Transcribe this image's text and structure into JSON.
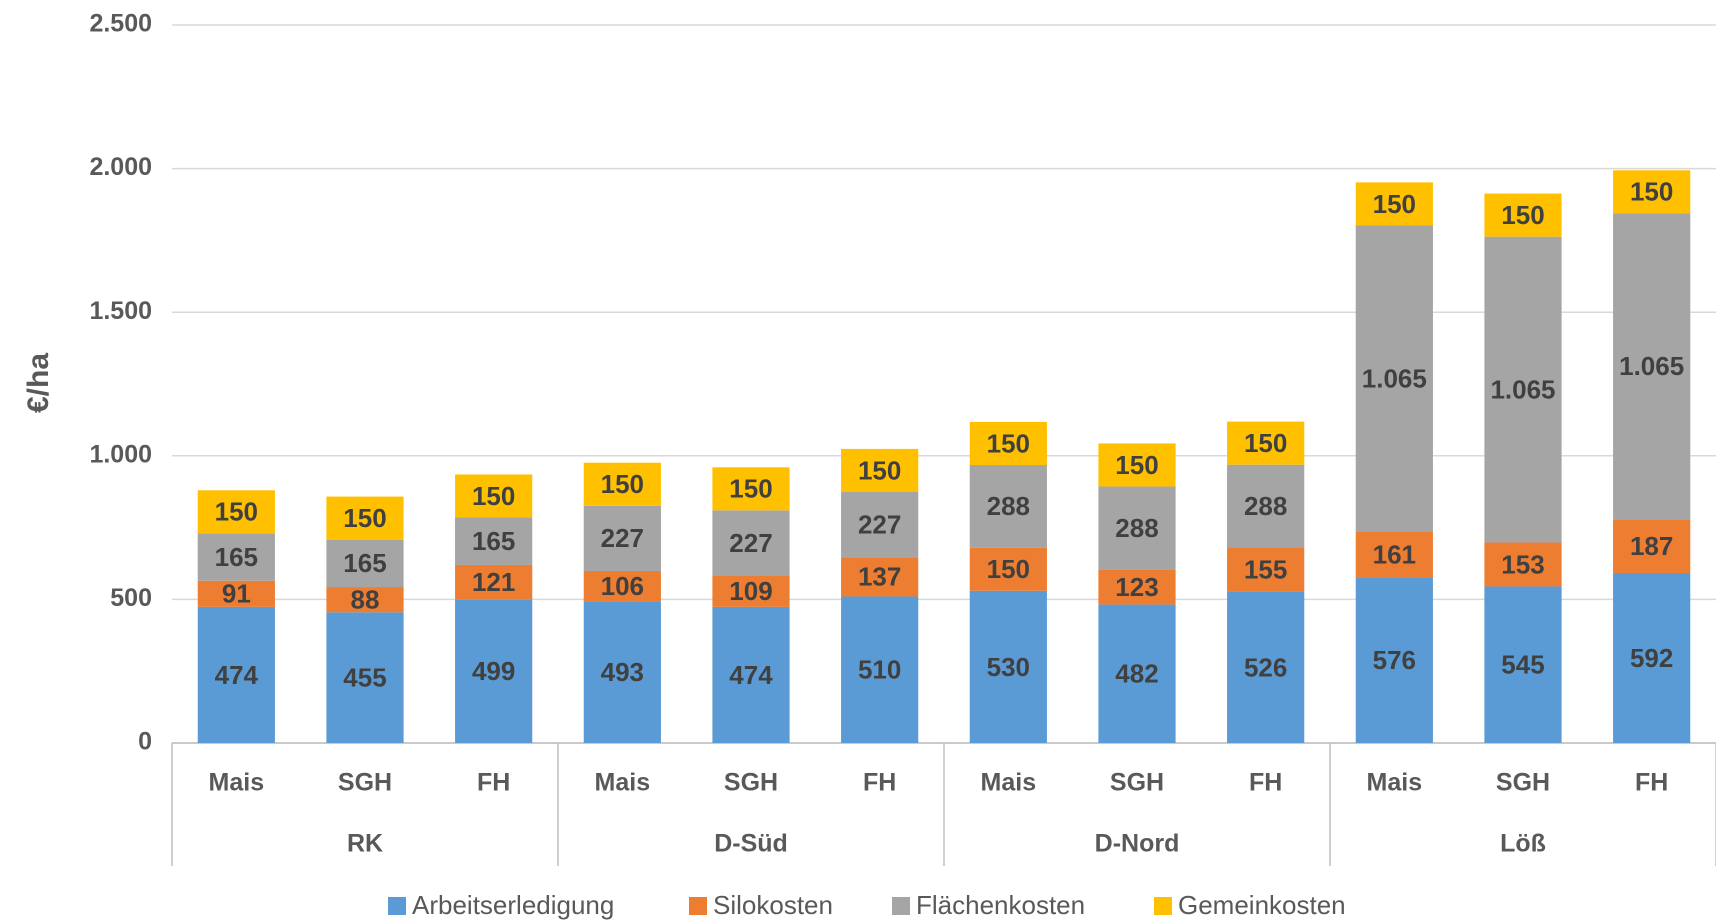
{
  "chart_data": {
    "type": "stacked_bar",
    "y_label": "€/ha",
    "categories": [
      "Mais",
      "SGH",
      "FH",
      "Mais",
      "SGH",
      "FH",
      "Mais",
      "SGH",
      "FH",
      "Mais",
      "SGH",
      "FH"
    ],
    "groups": [
      "RK",
      "D-Süd",
      "D-Nord",
      "Löß"
    ],
    "series": [
      {
        "name": "Arbeitserledigung",
        "color": "#5b9bd5",
        "values": [
          474,
          455,
          499,
          493,
          474,
          510,
          530,
          482,
          526,
          576,
          545,
          592
        ]
      },
      {
        "name": "Silokosten",
        "color": "#ed7d31",
        "values": [
          91,
          88,
          121,
          106,
          109,
          137,
          150,
          123,
          155,
          161,
          153,
          187
        ]
      },
      {
        "name": "Flächenkosten",
        "color": "#a5a5a5",
        "values": [
          165,
          165,
          165,
          227,
          227,
          227,
          288,
          288,
          288,
          1065,
          1065,
          1065
        ],
        "value_labels": [
          "165",
          "165",
          "165",
          "227",
          "227",
          "227",
          "288",
          "288",
          "288",
          "1.065",
          "1.065",
          "1.065"
        ]
      },
      {
        "name": "Gemeinkosten",
        "color": "#ffc000",
        "values": [
          150,
          150,
          150,
          150,
          150,
          150,
          150,
          150,
          150,
          150,
          150,
          150
        ]
      }
    ],
    "ylim": [
      0,
      2500
    ],
    "yticks": [
      0,
      500,
      {
        "value": 1000,
        "label": "1.000"
      },
      {
        "value": 1500,
        "label": "1.500"
      },
      {
        "value": 2000,
        "label": "2.000"
      },
      {
        "value": 2500,
        "label": "2.500"
      }
    ],
    "grid": true
  }
}
